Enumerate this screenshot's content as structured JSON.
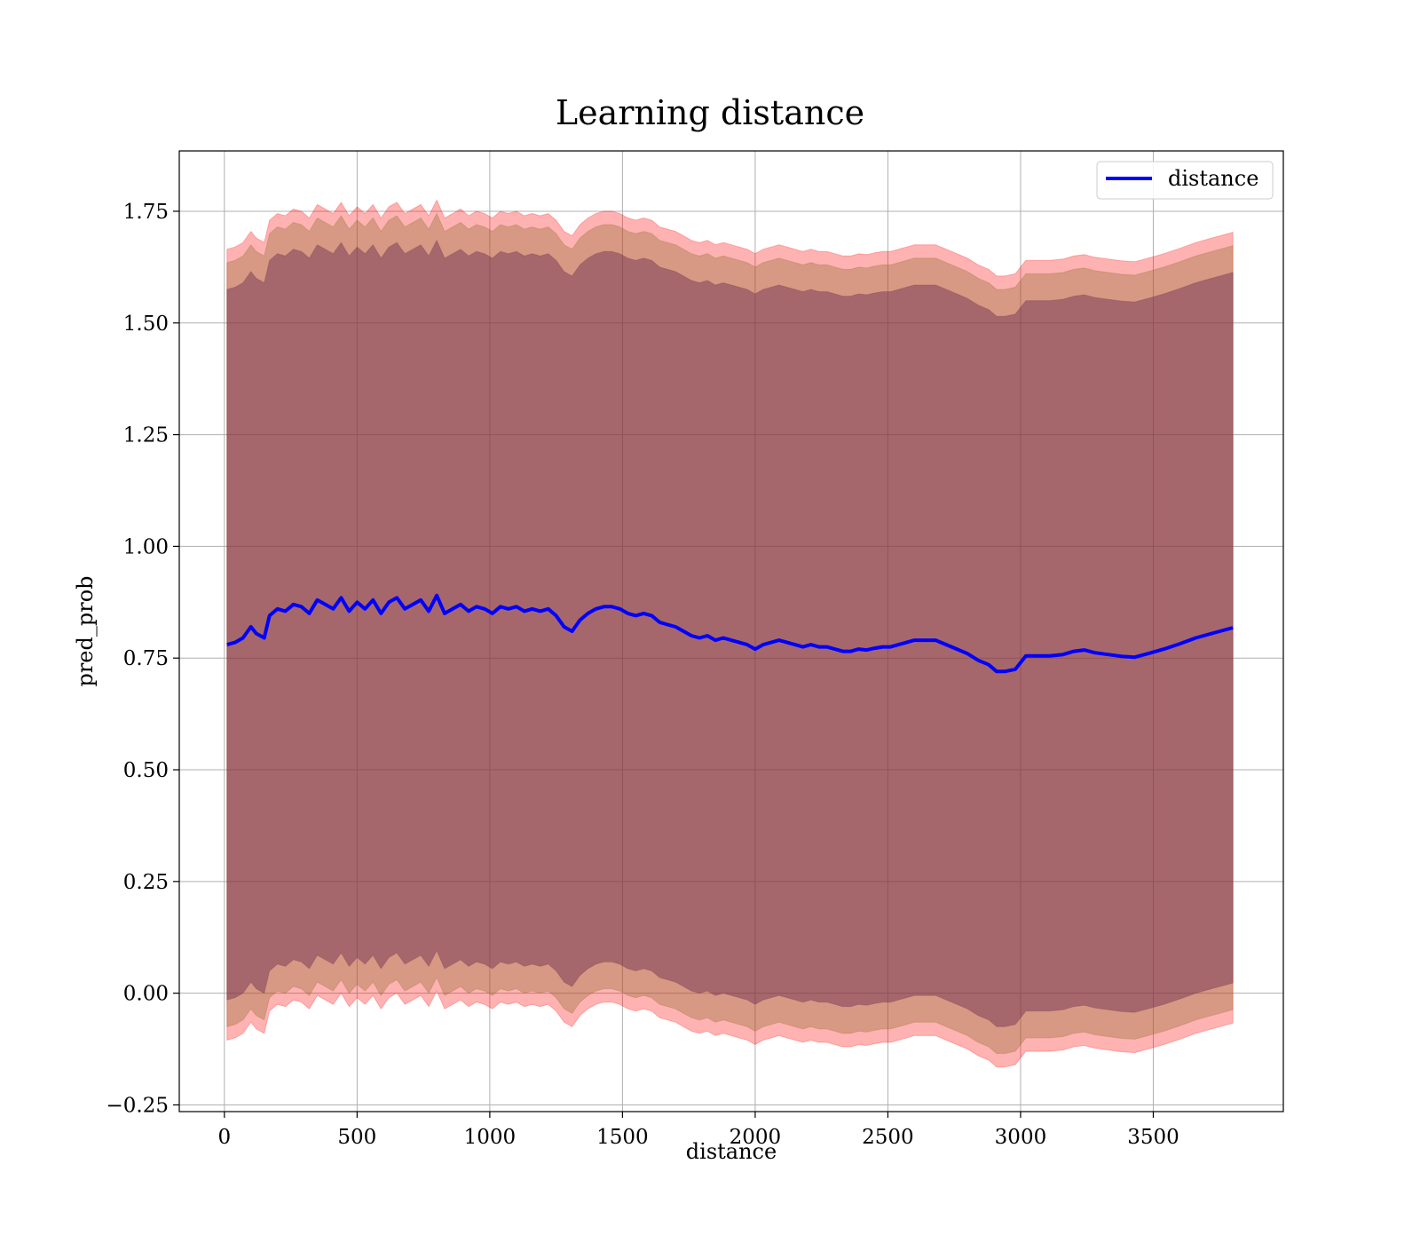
{
  "chart_data": {
    "type": "line",
    "title": "Learning distance",
    "xlabel": "distance",
    "ylabel": "pred_prob",
    "xlim": [
      -170,
      3990
    ],
    "ylim": [
      -0.265,
      1.885
    ],
    "x_ticks": [
      0,
      500,
      1000,
      1500,
      2000,
      2500,
      3000,
      3500
    ],
    "x_tick_labels": [
      "0",
      "500",
      "1000",
      "1500",
      "2000",
      "2500",
      "3000",
      "3500"
    ],
    "y_ticks": [
      -0.25,
      0.0,
      0.25,
      0.5,
      0.75,
      1.0,
      1.25,
      1.5,
      1.75
    ],
    "y_tick_labels": [
      "−0.25",
      "0.00",
      "0.25",
      "0.50",
      "0.75",
      "1.00",
      "1.25",
      "1.50",
      "1.75"
    ],
    "grid": true,
    "legend_position": "top-right",
    "colors": {
      "line": "#0000ff",
      "outer_band": "#ff0000",
      "middle_band": "#8b6a2a",
      "inner_band": "#6a2a50"
    },
    "series": [
      {
        "name": "distance",
        "x": [
          10,
          40,
          70,
          100,
          120,
          150,
          170,
          200,
          230,
          260,
          290,
          320,
          350,
          380,
          410,
          440,
          470,
          500,
          530,
          560,
          590,
          620,
          650,
          680,
          710,
          740,
          770,
          800,
          830,
          860,
          890,
          920,
          950,
          980,
          1010,
          1040,
          1070,
          1100,
          1130,
          1160,
          1190,
          1220,
          1250,
          1280,
          1310,
          1340,
          1370,
          1400,
          1430,
          1460,
          1490,
          1520,
          1550,
          1580,
          1610,
          1640,
          1670,
          1700,
          1730,
          1760,
          1790,
          1820,
          1850,
          1880,
          1910,
          1940,
          1970,
          2000,
          2030,
          2060,
          2090,
          2120,
          2150,
          2180,
          2210,
          2240,
          2270,
          2300,
          2330,
          2360,
          2390,
          2420,
          2450,
          2480,
          2510,
          2540,
          2570,
          2600,
          2640,
          2680,
          2720,
          2760,
          2800,
          2840,
          2880,
          2910,
          2940,
          2980,
          3020,
          3060,
          3110,
          3160,
          3200,
          3240,
          3280,
          3330,
          3380,
          3430,
          3480,
          3540,
          3600,
          3660,
          3720,
          3800
        ],
        "y": [
          0.78,
          0.785,
          0.795,
          0.82,
          0.805,
          0.795,
          0.845,
          0.86,
          0.855,
          0.87,
          0.865,
          0.85,
          0.88,
          0.87,
          0.86,
          0.885,
          0.855,
          0.875,
          0.86,
          0.88,
          0.85,
          0.875,
          0.885,
          0.86,
          0.87,
          0.88,
          0.855,
          0.89,
          0.85,
          0.86,
          0.87,
          0.855,
          0.865,
          0.86,
          0.85,
          0.865,
          0.86,
          0.865,
          0.855,
          0.86,
          0.855,
          0.86,
          0.845,
          0.82,
          0.81,
          0.835,
          0.85,
          0.86,
          0.865,
          0.865,
          0.86,
          0.85,
          0.845,
          0.85,
          0.845,
          0.83,
          0.825,
          0.82,
          0.81,
          0.8,
          0.795,
          0.8,
          0.79,
          0.795,
          0.79,
          0.785,
          0.78,
          0.77,
          0.78,
          0.785,
          0.79,
          0.785,
          0.78,
          0.775,
          0.78,
          0.775,
          0.775,
          0.77,
          0.765,
          0.765,
          0.77,
          0.768,
          0.772,
          0.775,
          0.775,
          0.78,
          0.785,
          0.79,
          0.79,
          0.79,
          0.78,
          0.77,
          0.76,
          0.745,
          0.735,
          0.72,
          0.72,
          0.725,
          0.755,
          0.755,
          0.755,
          0.758,
          0.765,
          0.768,
          0.762,
          0.758,
          0.754,
          0.752,
          0.76,
          0.77,
          0.782,
          0.795,
          0.805,
          0.818
        ]
      }
    ],
    "bands": [
      {
        "upper_offset": 0.885,
        "lower_offset": -0.885,
        "opacity": 0.3
      },
      {
        "upper_offset": 0.855,
        "lower_offset": -0.855,
        "opacity": 0.35
      },
      {
        "upper_offset": 0.795,
        "lower_offset": -0.795,
        "opacity": 0.45
      }
    ]
  }
}
